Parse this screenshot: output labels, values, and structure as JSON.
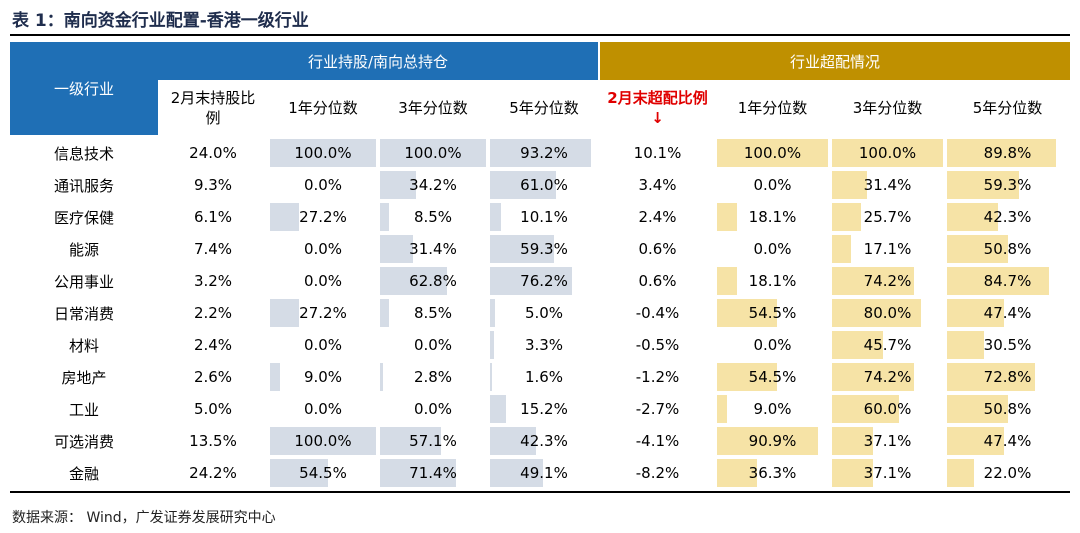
{
  "title": "表 1：南向资金行业配置-香港一级行业",
  "table": {
    "row_header": "一级行业",
    "group_headers": [
      "行业持股/南向总持仓",
      "行业超配情况"
    ],
    "columns": [
      "2月末持股比例",
      "1年分位数",
      "3年分位数",
      "5年分位数",
      "2月末超配比例↓",
      "1年分位数",
      "3年分位数",
      "5年分位数"
    ],
    "rows": [
      [
        "信息技术",
        "24.0%",
        "100.0%",
        "100.0%",
        "93.2%",
        "10.1%",
        "100.0%",
        "100.0%",
        "89.8%"
      ],
      [
        "通讯服务",
        "9.3%",
        "0.0%",
        "34.2%",
        "61.0%",
        "3.4%",
        "0.0%",
        "31.4%",
        "59.3%"
      ],
      [
        "医疗保健",
        "6.1%",
        "27.2%",
        "8.5%",
        "10.1%",
        "2.4%",
        "18.1%",
        "25.7%",
        "42.3%"
      ],
      [
        "能源",
        "7.4%",
        "0.0%",
        "31.4%",
        "59.3%",
        "0.6%",
        "0.0%",
        "17.1%",
        "50.8%"
      ],
      [
        "公用事业",
        "3.2%",
        "0.0%",
        "62.8%",
        "76.2%",
        "0.6%",
        "18.1%",
        "74.2%",
        "84.7%"
      ],
      [
        "日常消费",
        "2.2%",
        "27.2%",
        "8.5%",
        "5.0%",
        "-0.4%",
        "54.5%",
        "80.0%",
        "47.4%"
      ],
      [
        "材料",
        "2.4%",
        "0.0%",
        "0.0%",
        "3.3%",
        "-0.5%",
        "0.0%",
        "45.7%",
        "30.5%"
      ],
      [
        "房地产",
        "2.6%",
        "9.0%",
        "2.8%",
        "1.6%",
        "-1.2%",
        "54.5%",
        "74.2%",
        "72.8%"
      ],
      [
        "工业",
        "5.0%",
        "0.0%",
        "0.0%",
        "15.2%",
        "-2.7%",
        "9.0%",
        "60.0%",
        "50.8%"
      ],
      [
        "可选消费",
        "13.5%",
        "100.0%",
        "57.1%",
        "42.3%",
        "-4.1%",
        "90.9%",
        "37.1%",
        "47.4%"
      ],
      [
        "金融",
        "24.2%",
        "54.5%",
        "71.4%",
        "49.1%",
        "-8.2%",
        "36.3%",
        "37.1%",
        "22.0%"
      ]
    ]
  },
  "source": "数据来源：  Wind，广发证券发展研究中心"
}
